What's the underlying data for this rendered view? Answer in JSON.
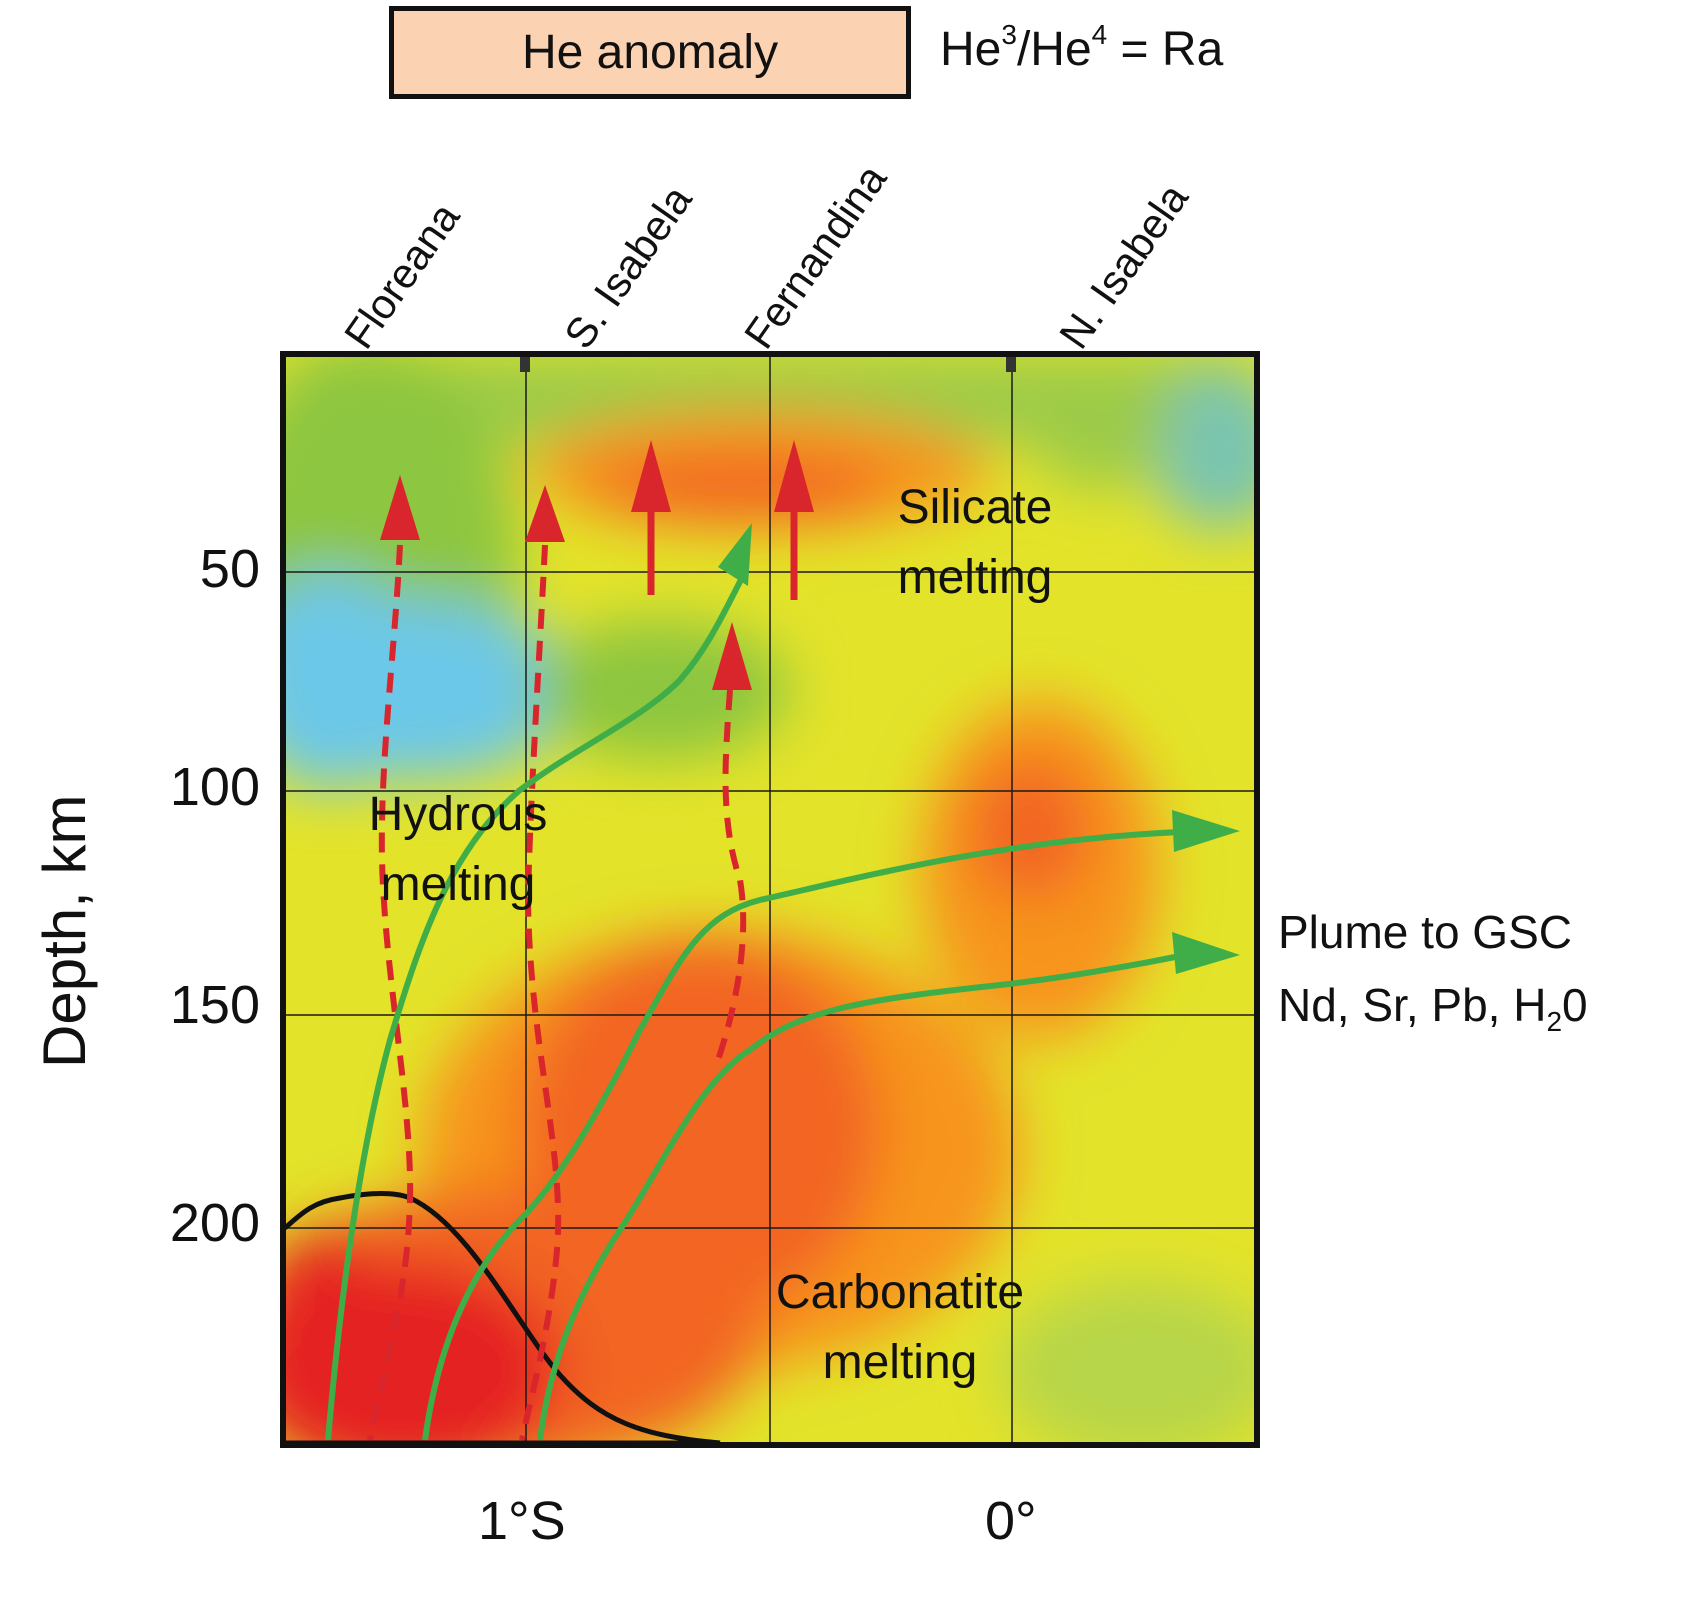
{
  "legend": {
    "label": "He anomaly",
    "swatch_color": "#fbd2b2"
  },
  "ratio": {
    "he3": "He",
    "sup3": "3",
    "slash": "/He",
    "sup4": "4",
    "tail": " = Ra"
  },
  "sites": [
    "Floreana",
    "S. Isabela",
    "Fernandina",
    "N. Isabela"
  ],
  "axes": {
    "ylabel": "Depth, km",
    "yticks": [
      "50",
      "100",
      "150",
      "200"
    ],
    "xticks": [
      "1°S",
      "0°"
    ]
  },
  "zones": {
    "silicate": [
      "Silicate",
      "melting"
    ],
    "hydrous": [
      "Hydrous",
      "melting"
    ],
    "carbonatite": [
      "Carbonatite",
      "melting"
    ]
  },
  "plume": {
    "line1": "Plume to GSC",
    "line2_a": "Nd, Sr, Pb, H",
    "line2_sub": "2",
    "line2_b": "0"
  },
  "colors": {
    "plume_flow": "#3fae49",
    "melt_arrow": "#d9262c",
    "He_anomaly_curve": "#111111",
    "anomaly_high": "#e52322",
    "anomaly_mid": "#f26522",
    "anomaly_low": "#f7941d",
    "neutral": "#ede92b",
    "cool": "#8dc63f",
    "cold": "#6cc8e8"
  }
}
